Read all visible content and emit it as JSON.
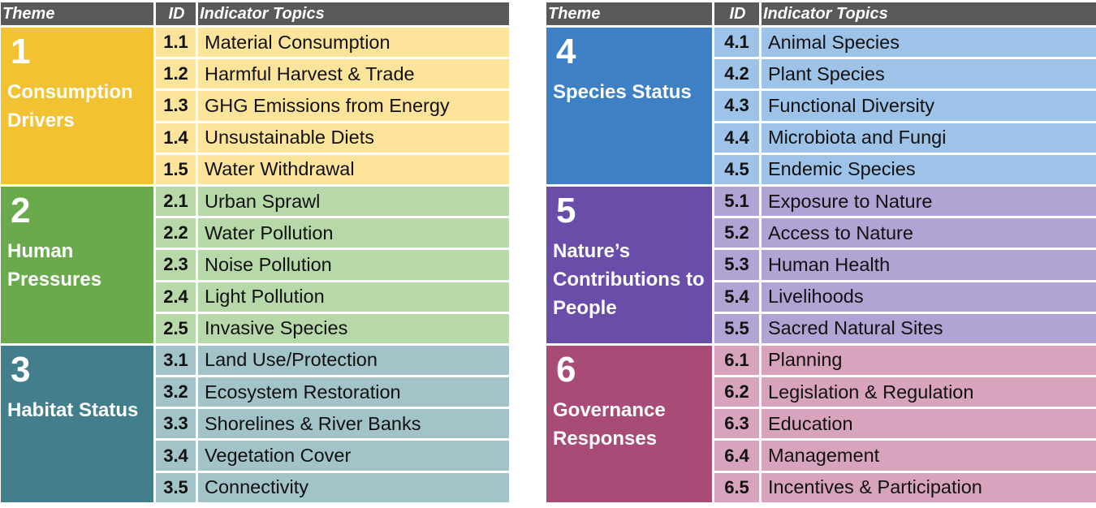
{
  "headers": {
    "theme": "Theme",
    "id": "ID",
    "topics": "Indicator Topics"
  },
  "themes": [
    {
      "number": "1",
      "name": "Consumption Drivers",
      "theme_color": "#F2C232",
      "row_color": "#FDE49B",
      "indicators": [
        {
          "id": "1.1",
          "topic": "Material Consumption"
        },
        {
          "id": "1.2",
          "topic": "Harmful Harvest & Trade"
        },
        {
          "id": "1.3",
          "topic": "GHG Emissions from Energy"
        },
        {
          "id": "1.4",
          "topic": "Unsustainable Diets"
        },
        {
          "id": "1.5",
          "topic": "Water Withdrawal"
        }
      ]
    },
    {
      "number": "2",
      "name": "Human Pressures",
      "theme_color": "#6AAA4C",
      "row_color": "#B7D8A8",
      "indicators": [
        {
          "id": "2.1",
          "topic": "Urban Sprawl"
        },
        {
          "id": "2.2",
          "topic": "Water Pollution"
        },
        {
          "id": "2.3",
          "topic": "Noise Pollution"
        },
        {
          "id": "2.4",
          "topic": "Light Pollution"
        },
        {
          "id": "2.5",
          "topic": "Invasive Species"
        }
      ]
    },
    {
      "number": "3",
      "name": "Habitat Status",
      "theme_color": "#437E8C",
      "row_color": "#A2C3C8",
      "indicators": [
        {
          "id": "3.1",
          "topic": "Land Use/Protection"
        },
        {
          "id": "3.2",
          "topic": "Ecosystem Restoration"
        },
        {
          "id": "3.3",
          "topic": "Shorelines & River Banks"
        },
        {
          "id": "3.4",
          "topic": "Vegetation Cover"
        },
        {
          "id": "3.5",
          "topic": "Connectivity"
        }
      ]
    },
    {
      "number": "4",
      "name": "Species Status",
      "theme_color": "#3D80C6",
      "row_color": "#9DC3E8",
      "indicators": [
        {
          "id": "4.1",
          "topic": "Animal Species"
        },
        {
          "id": "4.2",
          "topic": "Plant Species"
        },
        {
          "id": "4.3",
          "topic": "Functional Diversity"
        },
        {
          "id": "4.4",
          "topic": "Microbiota and Fungi"
        },
        {
          "id": "4.5",
          "topic": "Endemic Species"
        }
      ]
    },
    {
      "number": "5",
      "name": "Nature’s Contributions to People",
      "theme_color": "#6A4DA8",
      "row_color": "#B1A3D4",
      "indicators": [
        {
          "id": "5.1",
          "topic": "Exposure to Nature"
        },
        {
          "id": "5.2",
          "topic": "Access to Nature"
        },
        {
          "id": "5.3",
          "topic": "Human Health"
        },
        {
          "id": "5.4",
          "topic": "Livelihoods"
        },
        {
          "id": "5.5",
          "topic": "Sacred Natural Sites"
        }
      ]
    },
    {
      "number": "6",
      "name": "Governance Responses",
      "theme_color": "#A94B77",
      "row_color": "#D8A4BD",
      "indicators": [
        {
          "id": "6.1",
          "topic": "Planning"
        },
        {
          "id": "6.2",
          "topic": "Legislation & Regulation"
        },
        {
          "id": "6.3",
          "topic": "Education"
        },
        {
          "id": "6.4",
          "topic": "Management"
        },
        {
          "id": "6.5",
          "topic": "Incentives & Participation"
        }
      ]
    }
  ]
}
